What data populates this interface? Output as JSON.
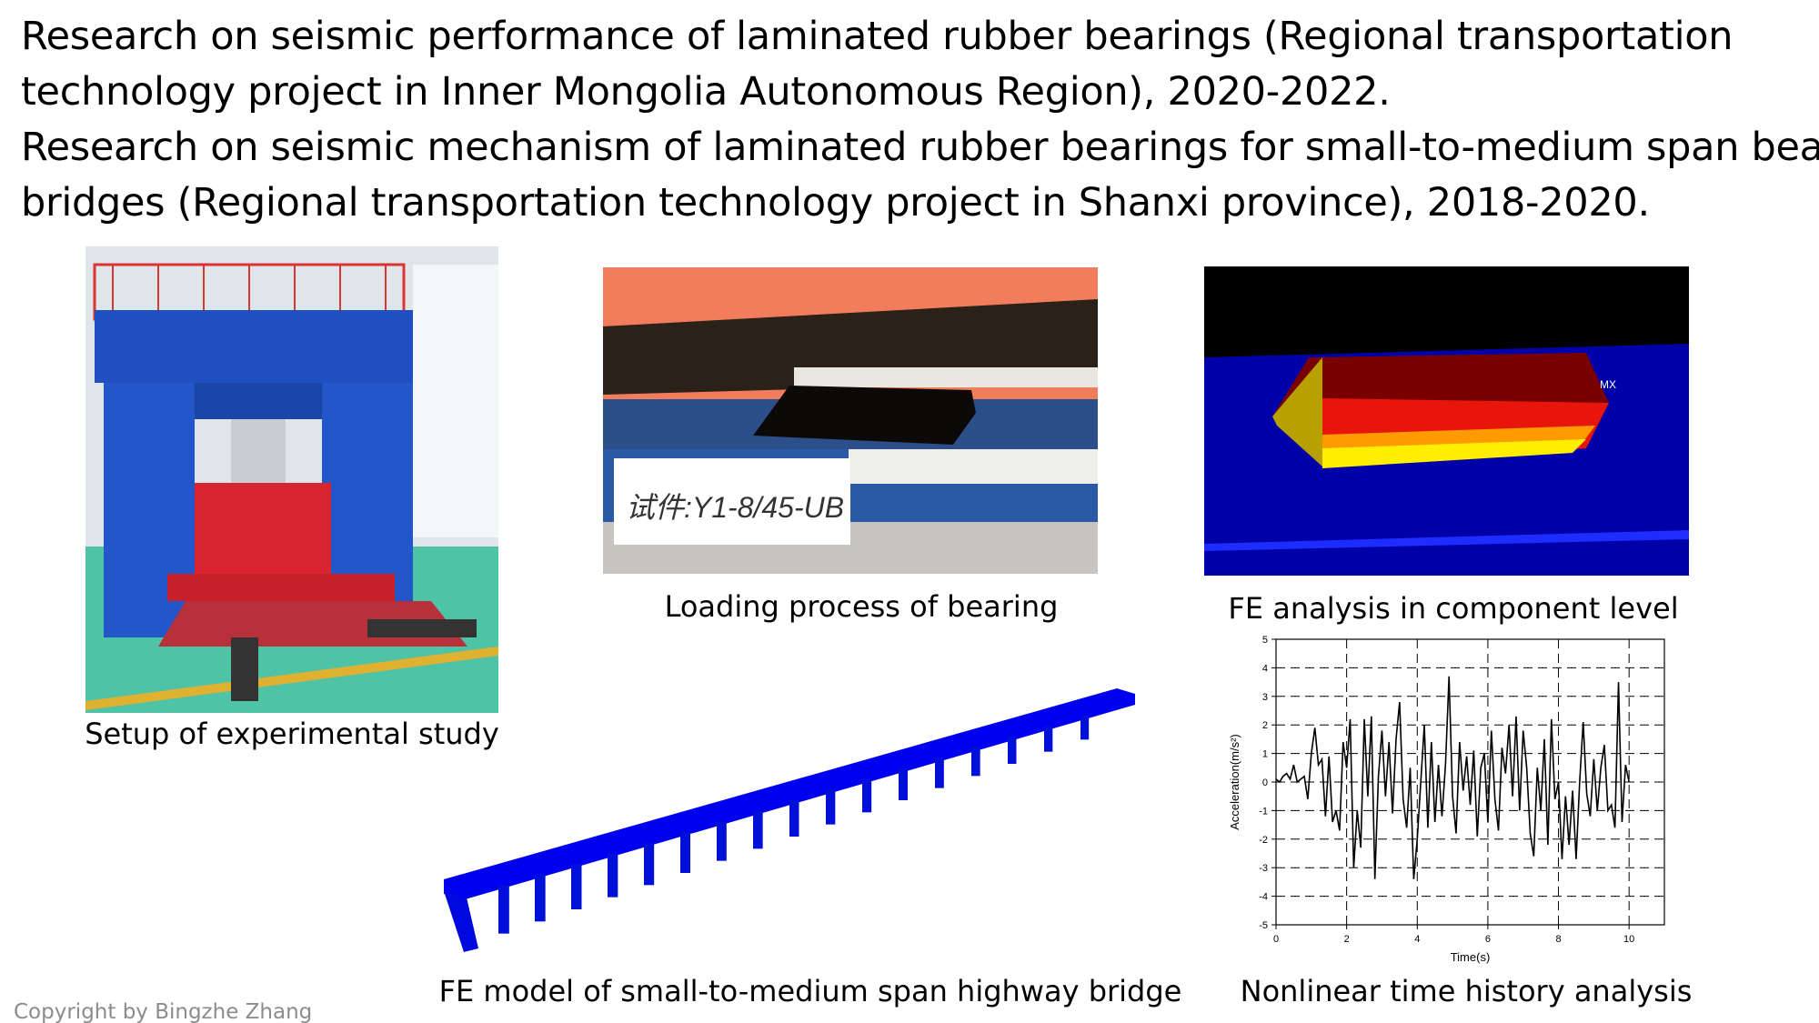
{
  "header": {
    "lines": [
      "Research on seismic performance of laminated rubber bearings (Regional transportation",
      "technology project in Inner Mongolia Autonomous Region), 2020-2022.",
      "Research on seismic mechanism of laminated rubber bearings for small-to-medium span beam",
      "bridges (Regional transportation technology project in Shanxi province), 2018-2020."
    ]
  },
  "figures": {
    "experimental_setup": {
      "caption": "Setup of experimental study"
    },
    "loading_process": {
      "caption": "Loading process of bearing",
      "label_text": "试件:Y1-8/45-UB"
    },
    "fe_component": {
      "caption": "FE analysis in component level",
      "label_text": "MX"
    },
    "fe_bridge": {
      "caption": "FE model of small-to-medium span highway bridge"
    },
    "time_history": {
      "caption": "Nonlinear time history analysis"
    }
  },
  "chart_data": {
    "type": "line",
    "title": "",
    "xlabel": "Time(s)",
    "ylabel": "Acceleration(m/s²)",
    "xlim": [
      0,
      11
    ],
    "ylim": [
      -5,
      5
    ],
    "xticks": [
      0,
      2,
      4,
      6,
      8,
      10
    ],
    "yticks": [
      -5,
      -4,
      -3,
      -2,
      -1,
      0,
      1,
      2,
      3,
      4,
      5
    ],
    "grid": true,
    "series": [
      {
        "name": "Acceleration",
        "color": "#000000",
        "x_step": 0.1,
        "values": [
          0.1,
          0.0,
          0.2,
          0.3,
          0.1,
          0.6,
          0.0,
          0.1,
          0.2,
          -0.6,
          1.0,
          1.9,
          0.6,
          0.8,
          -1.2,
          0.9,
          -1.4,
          -1.0,
          -1.7,
          1.4,
          0.5,
          2.2,
          -3.0,
          -1.0,
          -2.3,
          2.2,
          -0.5,
          2.3,
          -3.4,
          0.2,
          1.8,
          -0.5,
          1.4,
          -1.1,
          1.5,
          2.8,
          -0.6,
          -1.6,
          0.5,
          -3.4,
          -2.0,
          0.0,
          2.0,
          -1.6,
          1.4,
          -1.4,
          0.6,
          -1.2,
          0.6,
          3.7,
          -0.5,
          -1.8,
          1.4,
          -0.3,
          0.9,
          -0.8,
          1.1,
          -1.9,
          0.5,
          1.0,
          -1.4,
          1.8,
          -0.6,
          -1.7,
          1.2,
          0.3,
          2.0,
          -0.5,
          2.3,
          -1.0,
          1.8,
          0.5,
          -1.8,
          -2.6,
          0.5,
          -1.0,
          1.5,
          -2.2,
          2.2,
          -0.6,
          0.0,
          -2.7,
          -0.5,
          -2.2,
          -0.3,
          -2.7,
          0.0,
          2.1,
          -0.4,
          -1.2,
          0.8,
          -1.0,
          0.5,
          1.3,
          -1.0,
          -0.8,
          -1.6,
          3.5,
          -1.4,
          0.6,
          0.0
        ]
      }
    ]
  },
  "footer": {
    "copyright": "Copyright by Bingzhe Zhang"
  }
}
